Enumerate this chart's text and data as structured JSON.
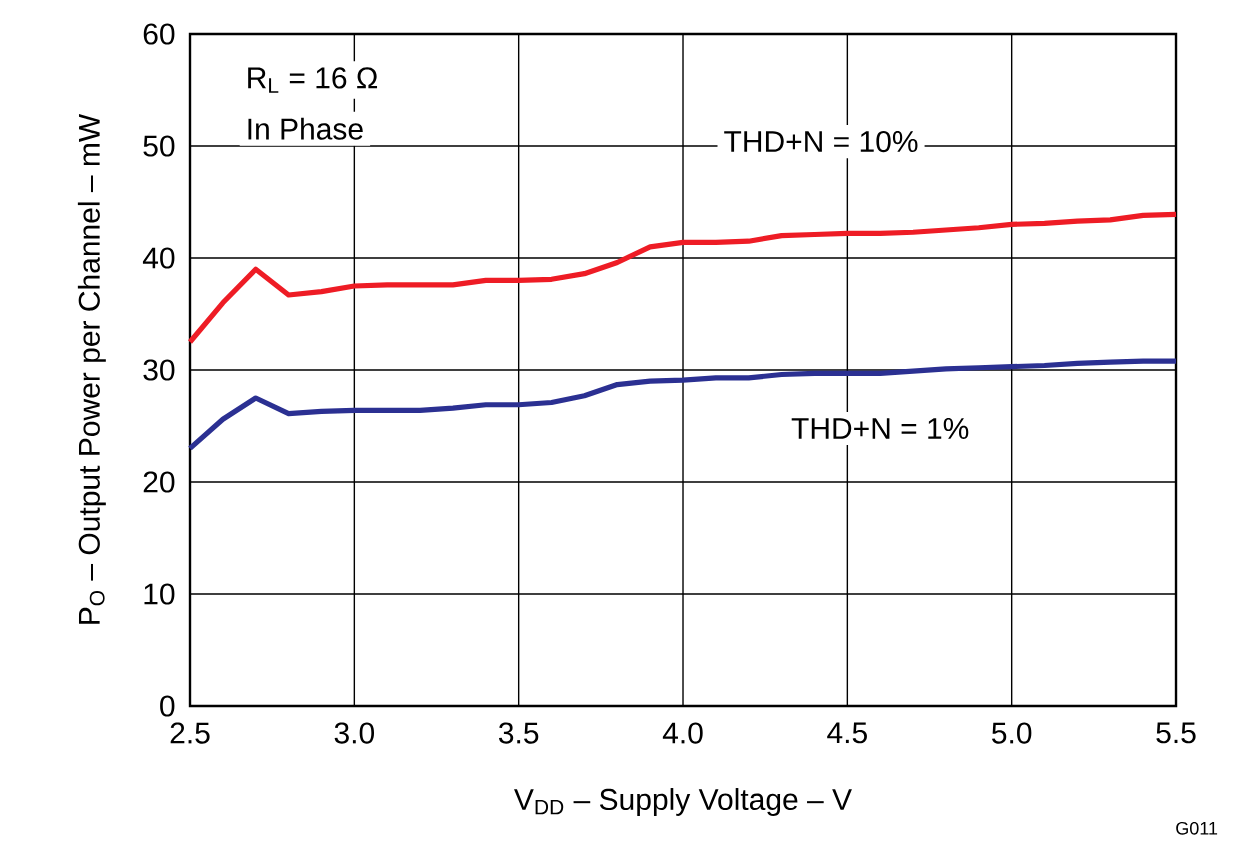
{
  "chart_data": {
    "type": "line",
    "xlabel": "V$_{DD}$ – Supply Voltage – V",
    "ylabel": "P$_{O}$ – Output Power per Channel – mW",
    "x": [
      2.5,
      2.6,
      2.7,
      2.8,
      2.9,
      3.0,
      3.1,
      3.2,
      3.3,
      3.4,
      3.5,
      3.6,
      3.7,
      3.8,
      3.9,
      4.0,
      4.1,
      4.2,
      4.3,
      4.4,
      4.5,
      4.6,
      4.7,
      4.8,
      4.9,
      5.0,
      5.1,
      5.2,
      5.3,
      5.4,
      5.5
    ],
    "series": [
      {
        "color": "#ee1c25",
        "values": [
          32.5,
          36,
          39,
          36.7,
          37,
          37.5,
          37.6,
          37.6,
          37.6,
          38,
          38,
          38.1,
          38.6,
          39.6,
          41,
          41.4,
          41.4,
          41.5,
          42,
          42.1,
          42.2,
          42.2,
          42.3,
          42.5,
          42.7,
          43,
          43.1,
          43.3,
          43.4,
          43.8,
          43.9
        ]
      },
      {
        "color": "#2b3092",
        "values": [
          23,
          25.6,
          27.5,
          26.1,
          26.3,
          26.4,
          26.4,
          26.4,
          26.6,
          26.9,
          26.9,
          27.1,
          27.7,
          28.7,
          29,
          29.1,
          29.3,
          29.3,
          29.6,
          29.7,
          29.7,
          29.7,
          29.9,
          30.1,
          30.2,
          30.3,
          30.4,
          30.6,
          30.7,
          30.8,
          30.8
        ]
      }
    ],
    "xlim": [
      2.5,
      5.5
    ],
    "ylim": [
      0,
      60
    ],
    "xticks": [
      {
        "value": 2.5,
        "label": "2.5"
      },
      {
        "value": 3,
        "label": "3.0"
      },
      {
        "value": 3.5,
        "label": "3.5"
      },
      {
        "value": 4,
        "label": "4.0"
      },
      {
        "value": 4.5,
        "label": "4.5"
      },
      {
        "value": 5,
        "label": "5.0"
      },
      {
        "value": 5.5,
        "label": "5.5"
      }
    ],
    "yticks": [
      0,
      10,
      20,
      30,
      40,
      50,
      60
    ],
    "grid": true,
    "marker": "none",
    "line_style": "solid",
    "annotations": [
      "R$_{L}$ = 16 Ω",
      "In Phase",
      "THD+N = 10%",
      "THD+N = 1%",
      "G011"
    ]
  }
}
